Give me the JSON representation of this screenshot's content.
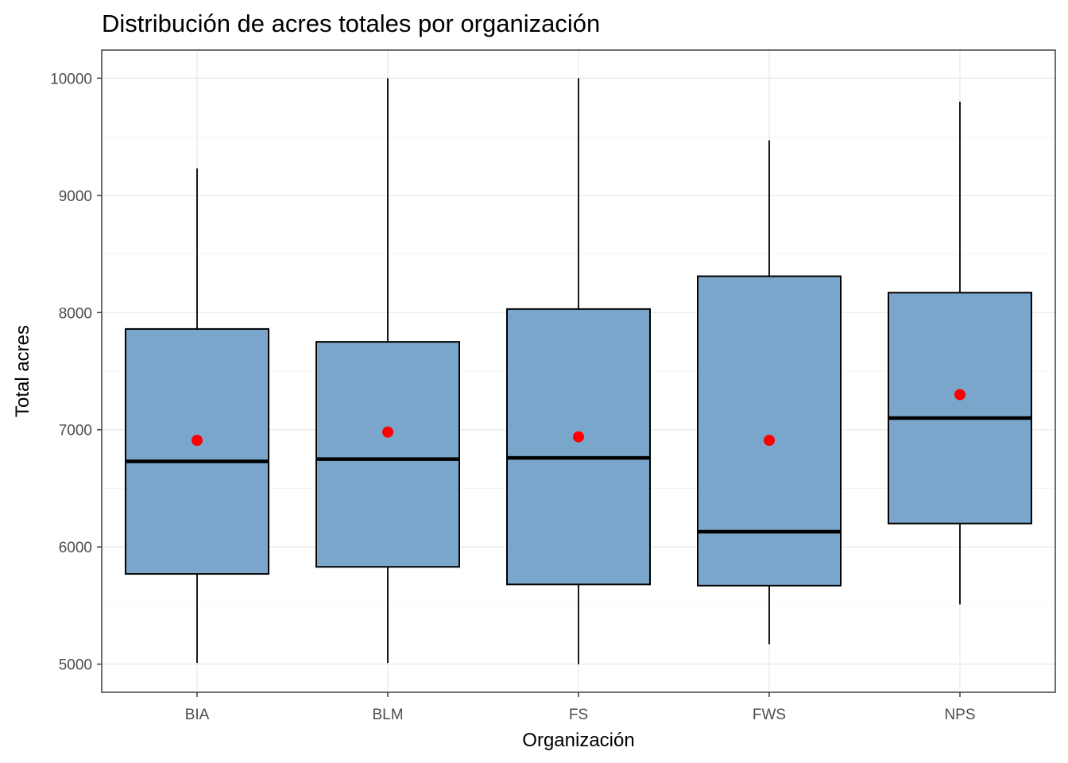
{
  "chart_data": {
    "type": "boxplot",
    "title": "Distribución de acres totales por organización",
    "xlabel": "Organización",
    "ylabel": "Total acres",
    "ylim": [
      4760,
      10240
    ],
    "yticks": [
      5000,
      6000,
      7000,
      8000,
      9000,
      10000
    ],
    "grid": true,
    "legend": "none",
    "categories": [
      "BIA",
      "BLM",
      "FS",
      "FWS",
      "NPS"
    ],
    "box_fill": "#7ba6cb",
    "mean_color": "#ff0000",
    "boxes": [
      {
        "category": "BIA",
        "whisker_low": 5010,
        "q1": 5770,
        "median": 6730,
        "q3": 7860,
        "whisker_high": 9230,
        "mean": 6910
      },
      {
        "category": "BLM",
        "whisker_low": 5010,
        "q1": 5830,
        "median": 6750,
        "q3": 7750,
        "whisker_high": 10000,
        "mean": 6980
      },
      {
        "category": "FS",
        "whisker_low": 5000,
        "q1": 5680,
        "median": 6760,
        "q3": 8030,
        "whisker_high": 10000,
        "mean": 6940
      },
      {
        "category": "FWS",
        "whisker_low": 5170,
        "q1": 5670,
        "median": 6130,
        "q3": 8310,
        "whisker_high": 9470,
        "mean": 6910
      },
      {
        "category": "NPS",
        "whisker_low": 5510,
        "q1": 6200,
        "median": 7100,
        "q3": 8170,
        "whisker_high": 9800,
        "mean": 7300
      }
    ]
  }
}
